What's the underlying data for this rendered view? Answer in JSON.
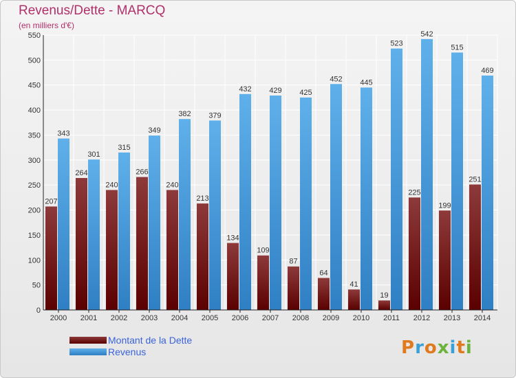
{
  "title": "Revenus/Dette - MARCQ",
  "subtitle": "(en milliers d'€)",
  "logo": {
    "text": "Proxiti",
    "letter_colors": [
      "#e07a1f",
      "#3aa0d8",
      "#e07a1f",
      "#6cb33e",
      "#3aa0d8",
      "#e07a1f",
      "#6cb33e"
    ]
  },
  "colors": {
    "dette_top": "#8e3a3a",
    "dette_bottom": "#5a0000",
    "revenus_top": "#5fb0ea",
    "revenus_bottom": "#2f7fc4",
    "grid": "#ffffff",
    "axis": "#222222"
  },
  "chart_data": {
    "type": "bar",
    "title": "Revenus/Dette - MARCQ",
    "ylabel": "",
    "xlabel": "",
    "ylim": [
      0,
      550
    ],
    "yticks": [
      0,
      50,
      100,
      150,
      200,
      250,
      300,
      350,
      400,
      450,
      500,
      550
    ],
    "grid": true,
    "legend_position": "bottom-left",
    "categories": [
      "2000",
      "2001",
      "2002",
      "2003",
      "2004",
      "2005",
      "2006",
      "2007",
      "2008",
      "2009",
      "2010",
      "2011",
      "2012",
      "2013",
      "2014"
    ],
    "series": [
      {
        "name": "Montant de la Dette",
        "values": [
          207,
          264,
          240,
          266,
          240,
          213,
          134,
          109,
          87,
          64,
          41,
          19,
          225,
          199,
          251
        ],
        "labels": [
          "207",
          "264",
          "240",
          "266",
          "240",
          "213",
          "134",
          "109",
          "87",
          "64",
          "41",
          "19",
          "225",
          "199",
          "251"
        ]
      },
      {
        "name": "Revenus",
        "values": [
          343,
          301,
          315,
          349,
          382,
          379,
          432,
          429,
          425,
          452,
          445,
          523,
          542,
          515,
          469
        ],
        "labels": [
          "343",
          "301",
          "315",
          "349",
          "382",
          "379",
          "432",
          "429",
          "425",
          "452",
          "445",
          "523",
          "542",
          "515",
          "469"
        ]
      }
    ]
  }
}
